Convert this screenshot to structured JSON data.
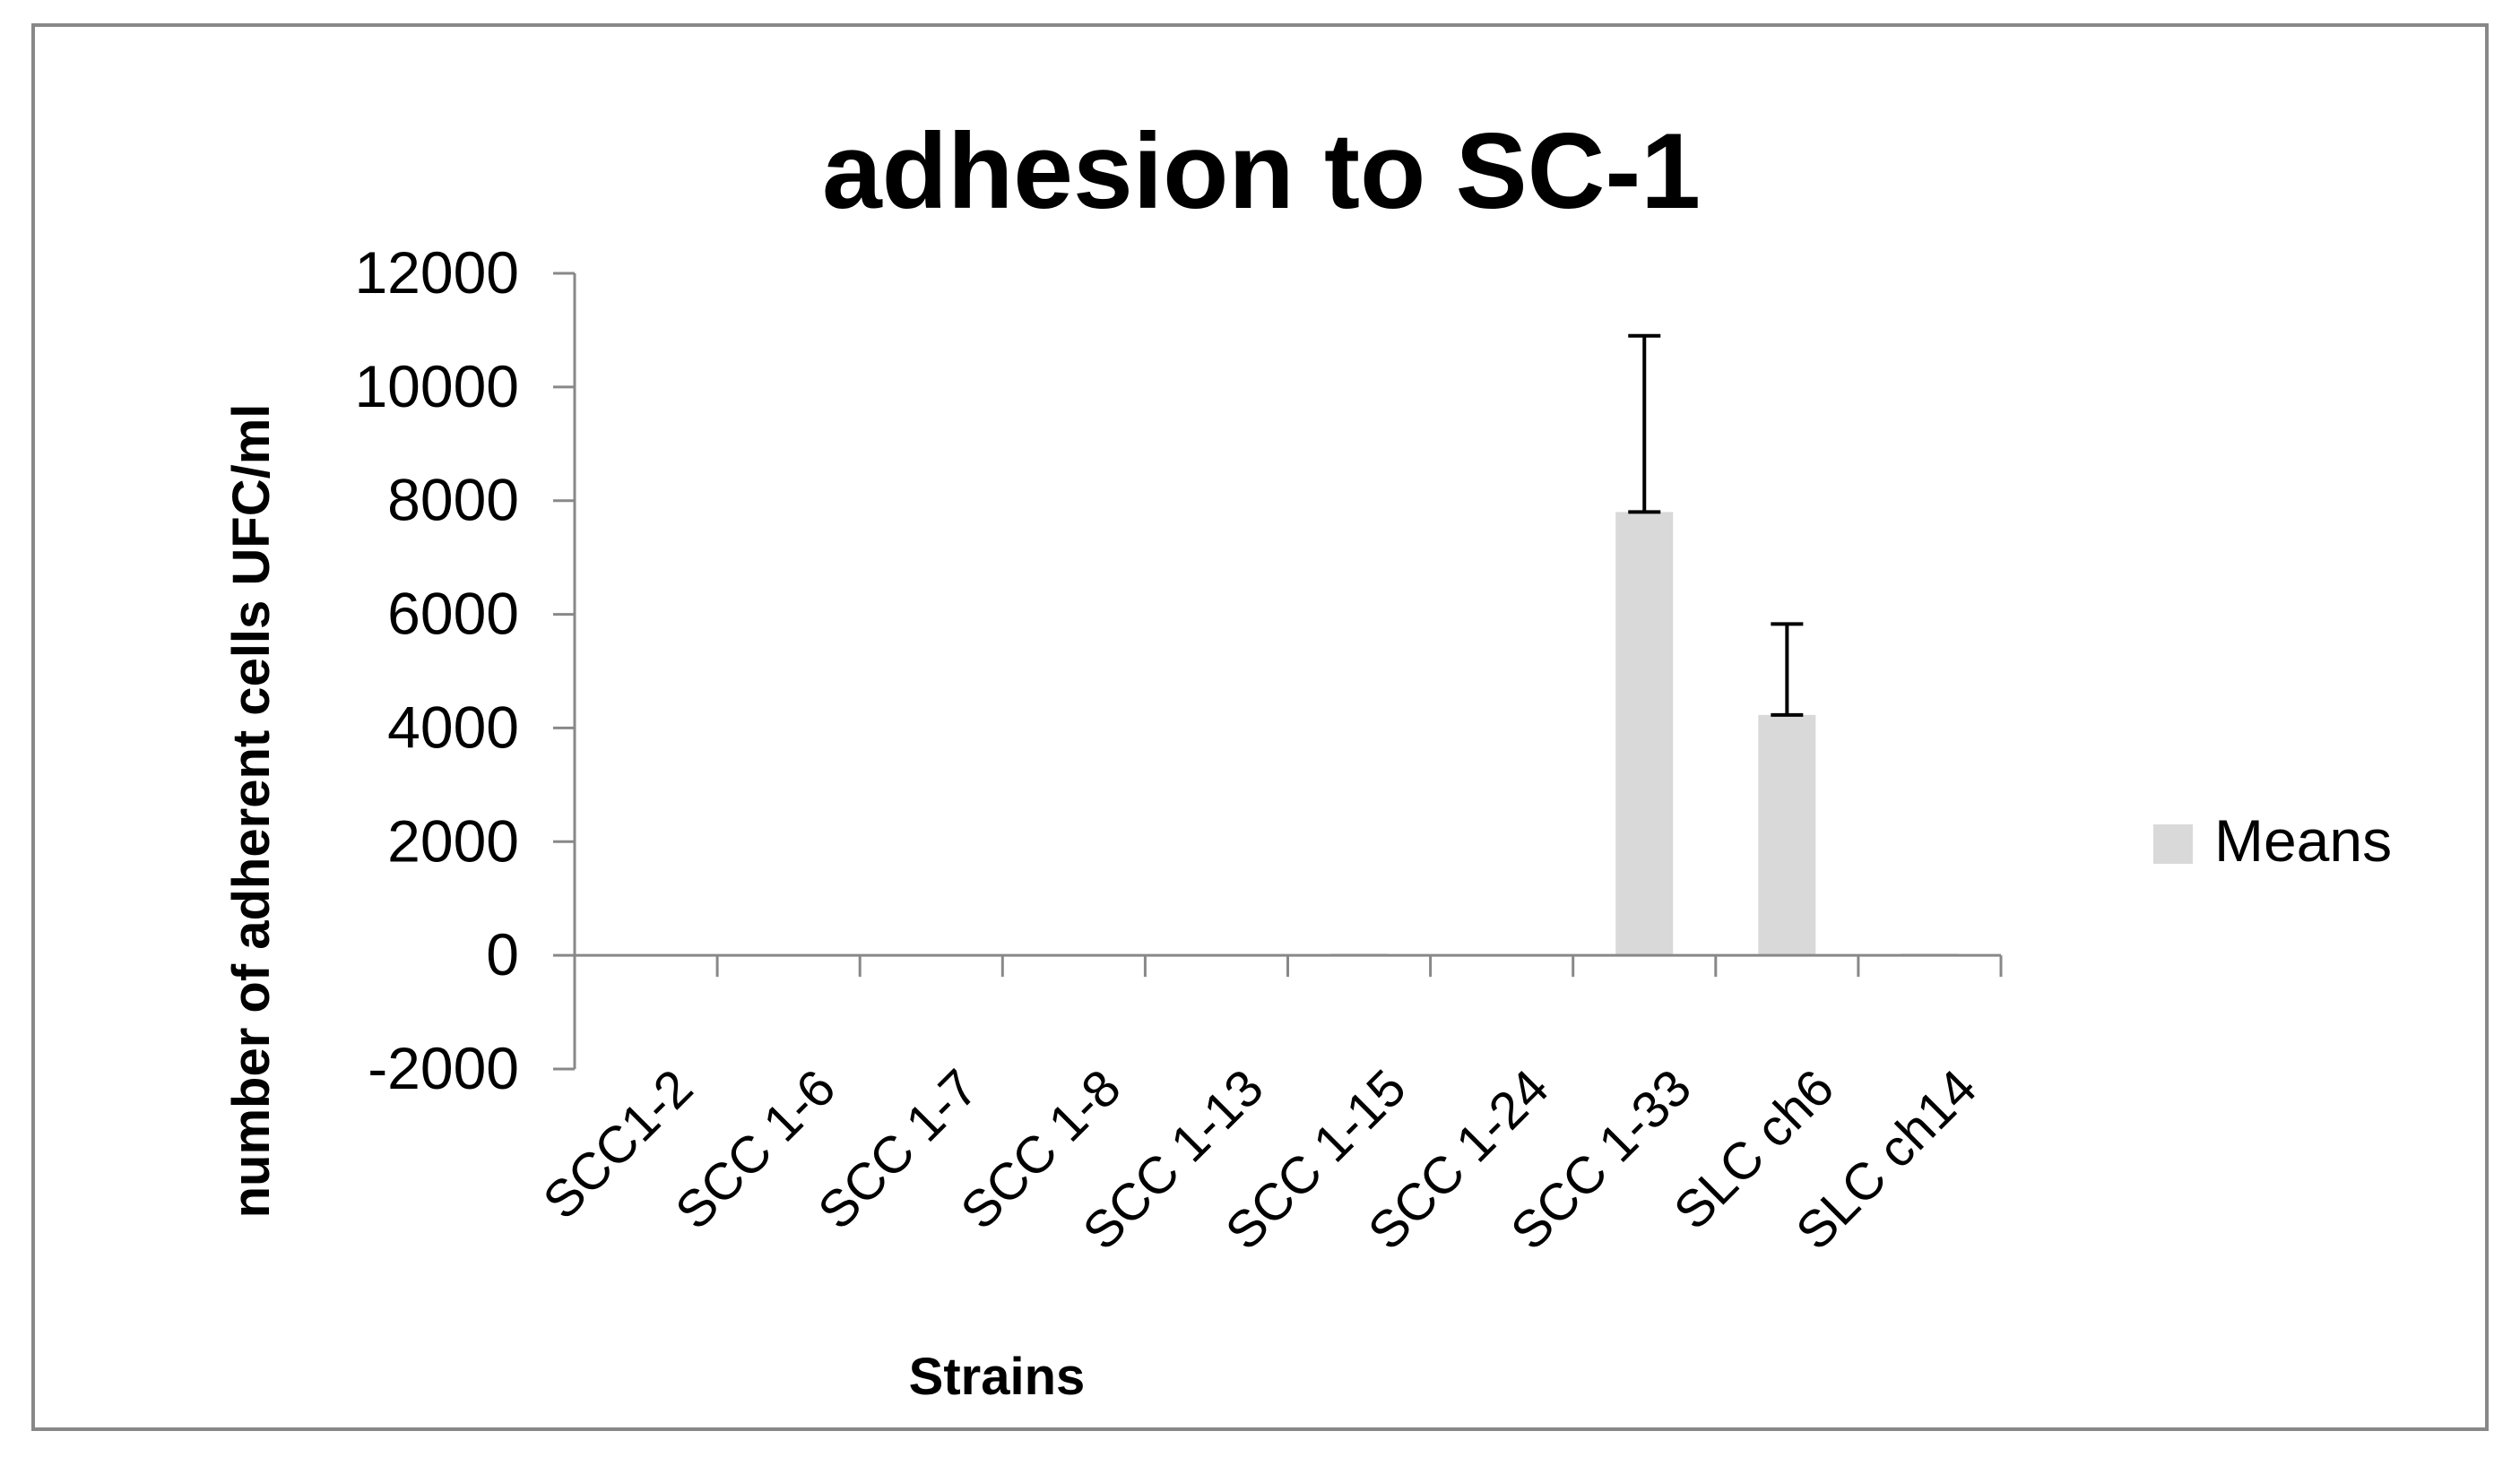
{
  "chart_data": {
    "type": "bar",
    "title": "adhesion to SC-1",
    "xlabel": "Strains",
    "ylabel": "number of  adherent cells  UFC/ml",
    "categories": [
      "SCC1-2",
      "SCC 1-6",
      "SCC 1-7",
      "SCC 1-8",
      "SCC 1-13",
      "SCC 1-15",
      "SCC 1-24",
      "SCC 1-33",
      "SLC ch6",
      "SLC ch14"
    ],
    "series": [
      {
        "name": "Means",
        "values": [
          0,
          0,
          0,
          0,
          0,
          30,
          0,
          7800,
          4230,
          30
        ],
        "error_plus": [
          0,
          0,
          0,
          0,
          0,
          0,
          0,
          3100,
          1600,
          0
        ]
      }
    ],
    "ylim": [
      -2000,
      12000
    ],
    "yticks": [
      "12000",
      "10000",
      "8000",
      "6000",
      "4000",
      "2000",
      "0",
      "-2000"
    ],
    "ytick_values": [
      12000,
      10000,
      8000,
      6000,
      4000,
      2000,
      0,
      -2000
    ],
    "grid": false,
    "legend_position": "right",
    "bar_color": "#d9d9d9",
    "text_color": "#000000",
    "border_color": "#888888"
  }
}
